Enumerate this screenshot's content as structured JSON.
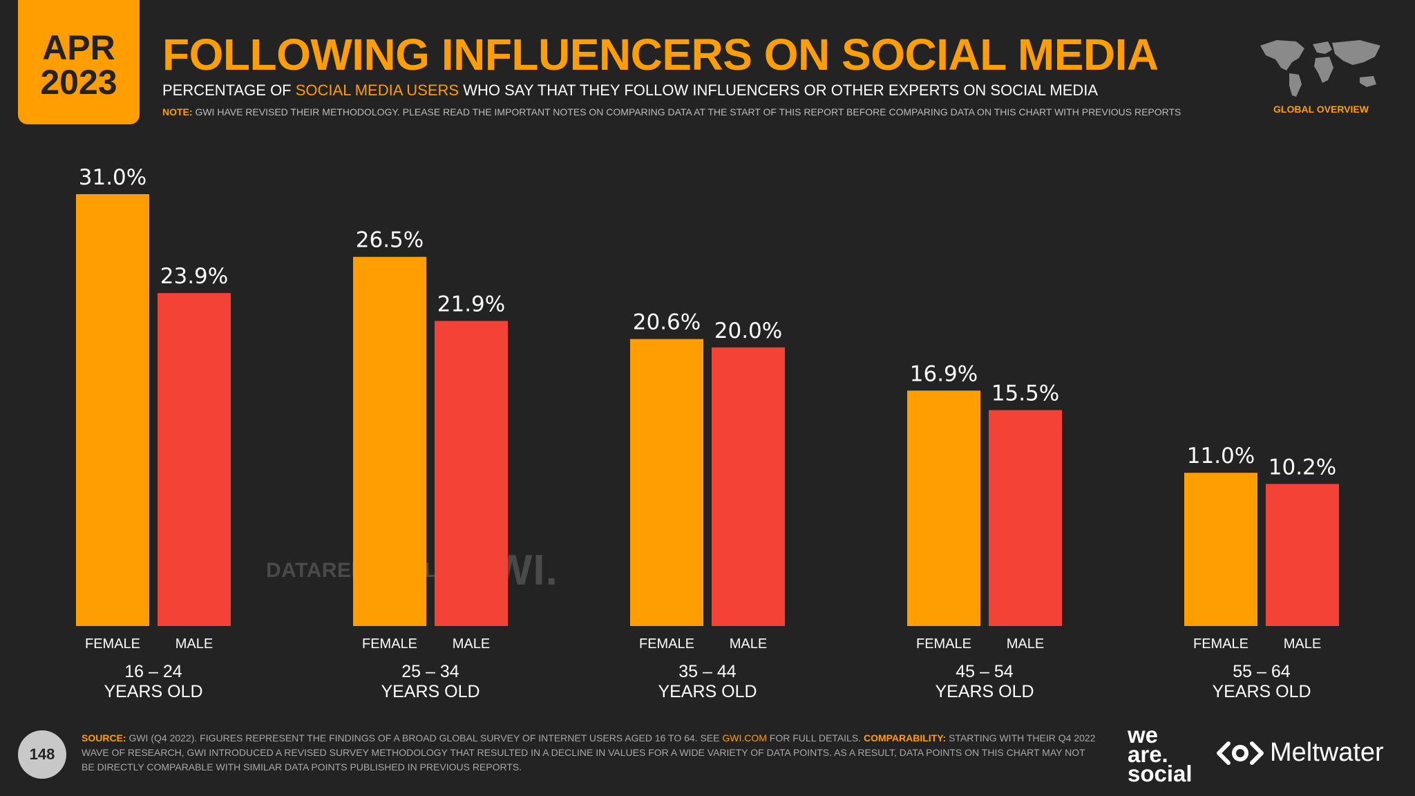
{
  "header": {
    "date_month": "APR",
    "date_year": "2023",
    "title": "FOLLOWING INFLUENCERS ON SOCIAL MEDIA",
    "subtitle_pre": "PERCENTAGE OF ",
    "subtitle_highlight": "SOCIAL MEDIA USERS",
    "subtitle_post": " WHO SAY THAT THEY FOLLOW INFLUENCERS OR OTHER EXPERTS ON SOCIAL MEDIA",
    "note_label": "NOTE:",
    "note_text": " GWI HAVE REVISED THEIR METHODOLOGY. PLEASE READ THE IMPORTANT NOTES ON COMPARING DATA AT THE START OF THIS REPORT BEFORE COMPARING DATA ON THIS CHART WITH PREVIOUS REPORTS",
    "region_label": "GLOBAL OVERVIEW"
  },
  "watermark": {
    "datareportal": "DATAREPORTAL",
    "gwi": "GWI."
  },
  "chart_data": {
    "type": "bar",
    "title": "FOLLOWING INFLUENCERS ON SOCIAL MEDIA",
    "xlabel": "",
    "ylabel": "",
    "ylim": [
      0,
      31
    ],
    "categories": [
      {
        "line1": "16 – 24",
        "line2": "YEARS OLD"
      },
      {
        "line1": "25 – 34",
        "line2": "YEARS OLD"
      },
      {
        "line1": "35 – 44",
        "line2": "YEARS OLD"
      },
      {
        "line1": "45 – 54",
        "line2": "YEARS OLD"
      },
      {
        "line1": "55 – 64",
        "line2": "YEARS OLD"
      }
    ],
    "series": [
      {
        "name": "FEMALE",
        "color": "#ff9e00",
        "values": [
          31.0,
          26.5,
          20.6,
          16.9,
          11.0
        ]
      },
      {
        "name": "MALE",
        "color": "#f44336",
        "values": [
          23.9,
          21.9,
          20.0,
          15.5,
          10.2
        ]
      }
    ]
  },
  "footer": {
    "page_number": "148",
    "source_label": "SOURCE:",
    "source_text_1": " GWI (Q4 2022). FIGURES REPRESENT THE FINDINGS OF A BROAD GLOBAL SURVEY OF INTERNET USERS AGED 16 TO 64. SEE ",
    "source_link": "GWI.COM",
    "source_text_2": " FOR FULL DETAILS. ",
    "comparability_label": "COMPARABILITY:",
    "comparability_text": " STARTING WITH THEIR Q4 2022 WAVE OF RESEARCH, GWI INTRODUCED A REVISED SURVEY METHODOLOGY THAT RESULTED IN A DECLINE IN VALUES FOR A WIDE VARIETY OF DATA POINTS. AS A RESULT, DATA POINTS ON THIS CHART MAY NOT BE DIRECTLY COMPARABLE WITH SIMILAR DATA POINTS PUBLISHED IN PREVIOUS REPORTS.",
    "brand_we": "we",
    "brand_are": "are.",
    "brand_social": "social",
    "brand_meltwater": "Meltwater"
  }
}
